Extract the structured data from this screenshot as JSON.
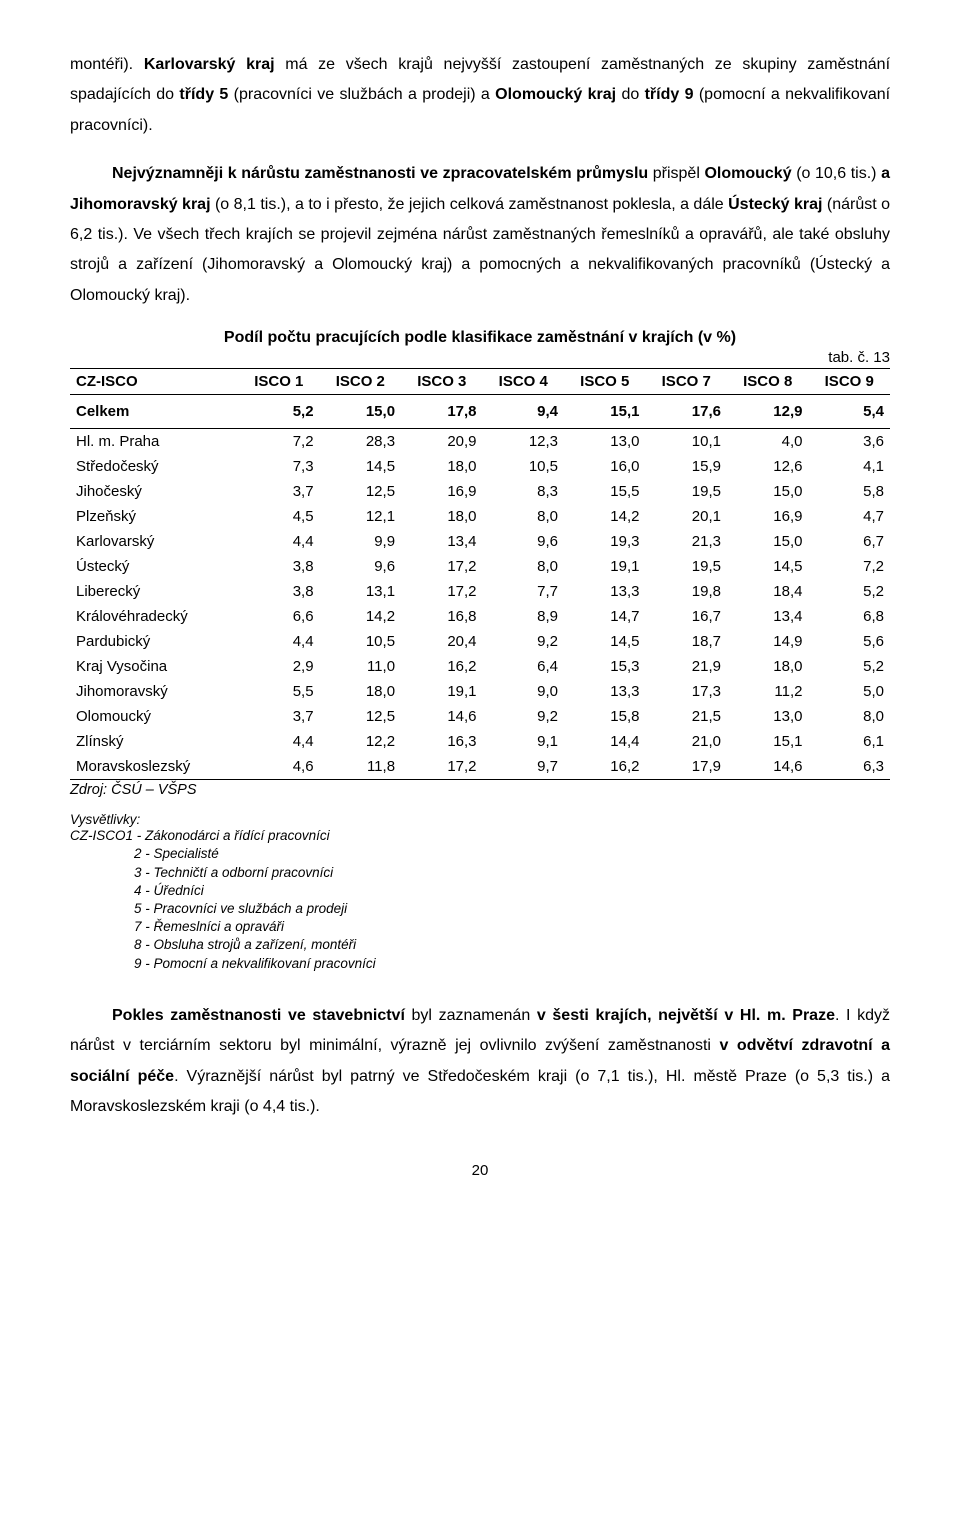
{
  "para1_html": "montéři). <b>Karlovarský kraj</b> má ze všech krajů nejvyšší zastoupení zaměstnaných ze skupiny zaměstnání spadajících do <b>třídy 5</b> (pracovníci ve službách a prodeji) a <b>Olomoucký kraj</b> do <b>třídy 9</b> (pomocní a nekvalifikovaní pracovníci).",
  "para2_html": "<b>Nejvýznamněji k nárůstu zaměstnanosti ve zpracovatelském průmyslu</b> přispěl <b>Olomoucký</b> (o 10,6 tis.) <b>a Jihomoravský kraj</b> (o 8,1 tis.), a to i přesto, že jejich celková zaměstnanost poklesla, a dále <b>Ústecký kraj</b> (nárůst o 6,2 tis.). Ve všech třech krajích se projevil zejména nárůst zaměstnaných řemeslníků a opravářů, ale také obsluhy strojů a zařízení (Jihomoravský a Olomoucký kraj) a pomocných a nekvalifikovaných pracovníků (Ústecký a Olomoucký kraj).",
  "table_title": "Podíl počtu pracujících podle klasifikace zaměstnání v krajích (v %)",
  "tab_label": "tab. č. 13",
  "columns": [
    "CZ-ISCO",
    "ISCO 1",
    "ISCO 2",
    "ISCO 3",
    "ISCO 4",
    "ISCO 5",
    "ISCO 7",
    "ISCO 8",
    "ISCO 9"
  ],
  "total_row": [
    "Celkem",
    "5,2",
    "15,0",
    "17,8",
    "9,4",
    "15,1",
    "17,6",
    "12,9",
    "5,4"
  ],
  "rows": [
    [
      "Hl. m. Praha",
      "7,2",
      "28,3",
      "20,9",
      "12,3",
      "13,0",
      "10,1",
      "4,0",
      "3,6"
    ],
    [
      "Středočeský",
      "7,3",
      "14,5",
      "18,0",
      "10,5",
      "16,0",
      "15,9",
      "12,6",
      "4,1"
    ],
    [
      "Jihočeský",
      "3,7",
      "12,5",
      "16,9",
      "8,3",
      "15,5",
      "19,5",
      "15,0",
      "5,8"
    ],
    [
      "Plzeňský",
      "4,5",
      "12,1",
      "18,0",
      "8,0",
      "14,2",
      "20,1",
      "16,9",
      "4,7"
    ],
    [
      "Karlovarský",
      "4,4",
      "9,9",
      "13,4",
      "9,6",
      "19,3",
      "21,3",
      "15,0",
      "6,7"
    ],
    [
      "Ústecký",
      "3,8",
      "9,6",
      "17,2",
      "8,0",
      "19,1",
      "19,5",
      "14,5",
      "7,2"
    ],
    [
      "Liberecký",
      "3,8",
      "13,1",
      "17,2",
      "7,7",
      "13,3",
      "19,8",
      "18,4",
      "5,2"
    ],
    [
      "Královéhradecký",
      "6,6",
      "14,2",
      "16,8",
      "8,9",
      "14,7",
      "16,7",
      "13,4",
      "6,8"
    ],
    [
      "Pardubický",
      "4,4",
      "10,5",
      "20,4",
      "9,2",
      "14,5",
      "18,7",
      "14,9",
      "5,6"
    ],
    [
      "Kraj Vysočina",
      "2,9",
      "11,0",
      "16,2",
      "6,4",
      "15,3",
      "21,9",
      "18,0",
      "5,2"
    ],
    [
      "Jihomoravský",
      "5,5",
      "18,0",
      "19,1",
      "9,0",
      "13,3",
      "17,3",
      "11,2",
      "5,0"
    ],
    [
      "Olomoucký",
      "3,7",
      "12,5",
      "14,6",
      "9,2",
      "15,8",
      "21,5",
      "13,0",
      "8,0"
    ],
    [
      "Zlínský",
      "4,4",
      "12,2",
      "16,3",
      "9,1",
      "14,4",
      "21,0",
      "15,1",
      "6,1"
    ],
    [
      "Moravskoslezský",
      "4,6",
      "11,8",
      "17,2",
      "9,7",
      "16,2",
      "17,9",
      "14,6",
      "6,3"
    ]
  ],
  "source": "Zdroj: ČSÚ – VŠPS",
  "legend_head": "Vysvětlivky:",
  "legend_lines": [
    "CZ-ISCO1 - Zákonodárci a řídící pracovníci",
    "2 - Specialisté",
    "3 - Techničtí a odborní pracovníci",
    "4 - Úředníci",
    "5 - Pracovníci ve službách a prodeji",
    "7 - Řemeslníci a opraváři",
    "8 - Obsluha strojů a zařízení, montéři",
    "9 - Pomocní a nekvalifikovaní pracovníci"
  ],
  "para3_html": "<b>Pokles zaměstnanosti ve stavebnictví</b> byl zaznamenán <b>v šesti krajích, největší v Hl. m. Praze</b>. I když nárůst v terciárním sektoru byl minimální, výrazně jej ovlivnilo zvýšení zaměstnanosti <b>v odvětví zdravotní a sociální péče</b>. Výraznější nárůst byl patrný ve Středočeském kraji (o 7,1 tis.), Hl. městě Praze (o 5,3 tis.) a Moravskoslezském kraji (o 4,4 tis.).",
  "page_number": "20"
}
